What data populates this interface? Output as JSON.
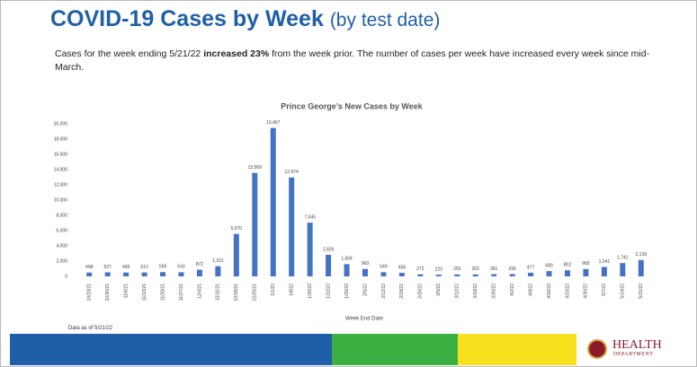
{
  "header": {
    "title": "COVID-19 Cases by Week",
    "title_note": "(by test date)"
  },
  "description": {
    "before": "Cases for the week ending 5/21/22 ",
    "bold": "increased 23%",
    "after": " from the week prior. The number of cases per week have increased every week since mid-March."
  },
  "chart_data": {
    "type": "bar",
    "title": "Prince George’s New Cases by Week",
    "x_label": "Week End Date",
    "color": "#4472c4",
    "categories": [
      "10/23/21",
      "10/30/21",
      "11/6/21",
      "11/13/21",
      "11/20/21",
      "11/27/21",
      "12/4/21",
      "12/11/21",
      "12/18/21",
      "12/25/21",
      "1/1/22",
      "1/8/22",
      "1/15/22",
      "1/22/22",
      "1/29/22",
      "2/5/22",
      "2/12/22",
      "2/19/22",
      "2/26/22",
      "3/5/22",
      "3/12/22",
      "3/19/22",
      "3/26/22",
      "4/2/22",
      "4/9/22",
      "4/16/22",
      "4/23/22",
      "4/30/22",
      "5/7/22",
      "5/14/22",
      "5/21/22"
    ],
    "values": [
      498,
      527,
      499,
      512,
      559,
      543,
      872,
      1331,
      5570,
      13569,
      19457,
      12974,
      7045,
      2829,
      1604,
      963,
      549,
      458,
      272,
      223,
      255,
      262,
      281,
      296,
      477,
      690,
      802,
      965,
      1241,
      1741,
      2139
    ],
    "value_labels": [
      "498",
      "527",
      "499",
      "512",
      "559",
      "543",
      "872",
      "1,331",
      "5,570",
      "13,569",
      "19,457",
      "12,974",
      "7,045",
      "2,829",
      "1,604",
      "963",
      "549",
      "458",
      "272",
      "223",
      "255",
      "262",
      "281",
      "296",
      "477",
      "690",
      "802",
      "965",
      "1,241",
      "1,741",
      "2,139"
    ],
    "ylim": [
      0,
      20000
    ],
    "yticks": [
      0,
      {
        "value": 2000,
        "label": "2,000"
      },
      {
        "value": 4000,
        "label": "4,000"
      },
      {
        "value": 6000,
        "label": "6,000"
      },
      {
        "value": 8000,
        "label": "8,000"
      },
      {
        "value": 10000,
        "label": "10,000"
      },
      {
        "value": 12000,
        "label": "12,000"
      },
      {
        "value": 14000,
        "label": "14,000"
      },
      {
        "value": 16000,
        "label": "16,000"
      },
      {
        "value": 18000,
        "label": "18,000"
      },
      {
        "value": 20000,
        "label": "20,000"
      }
    ],
    "grid": false
  },
  "footer": {
    "data_note": "Data as of 5/21/22",
    "logo_line1": "HEALTH",
    "logo_line2": "DEPARTMENT"
  }
}
